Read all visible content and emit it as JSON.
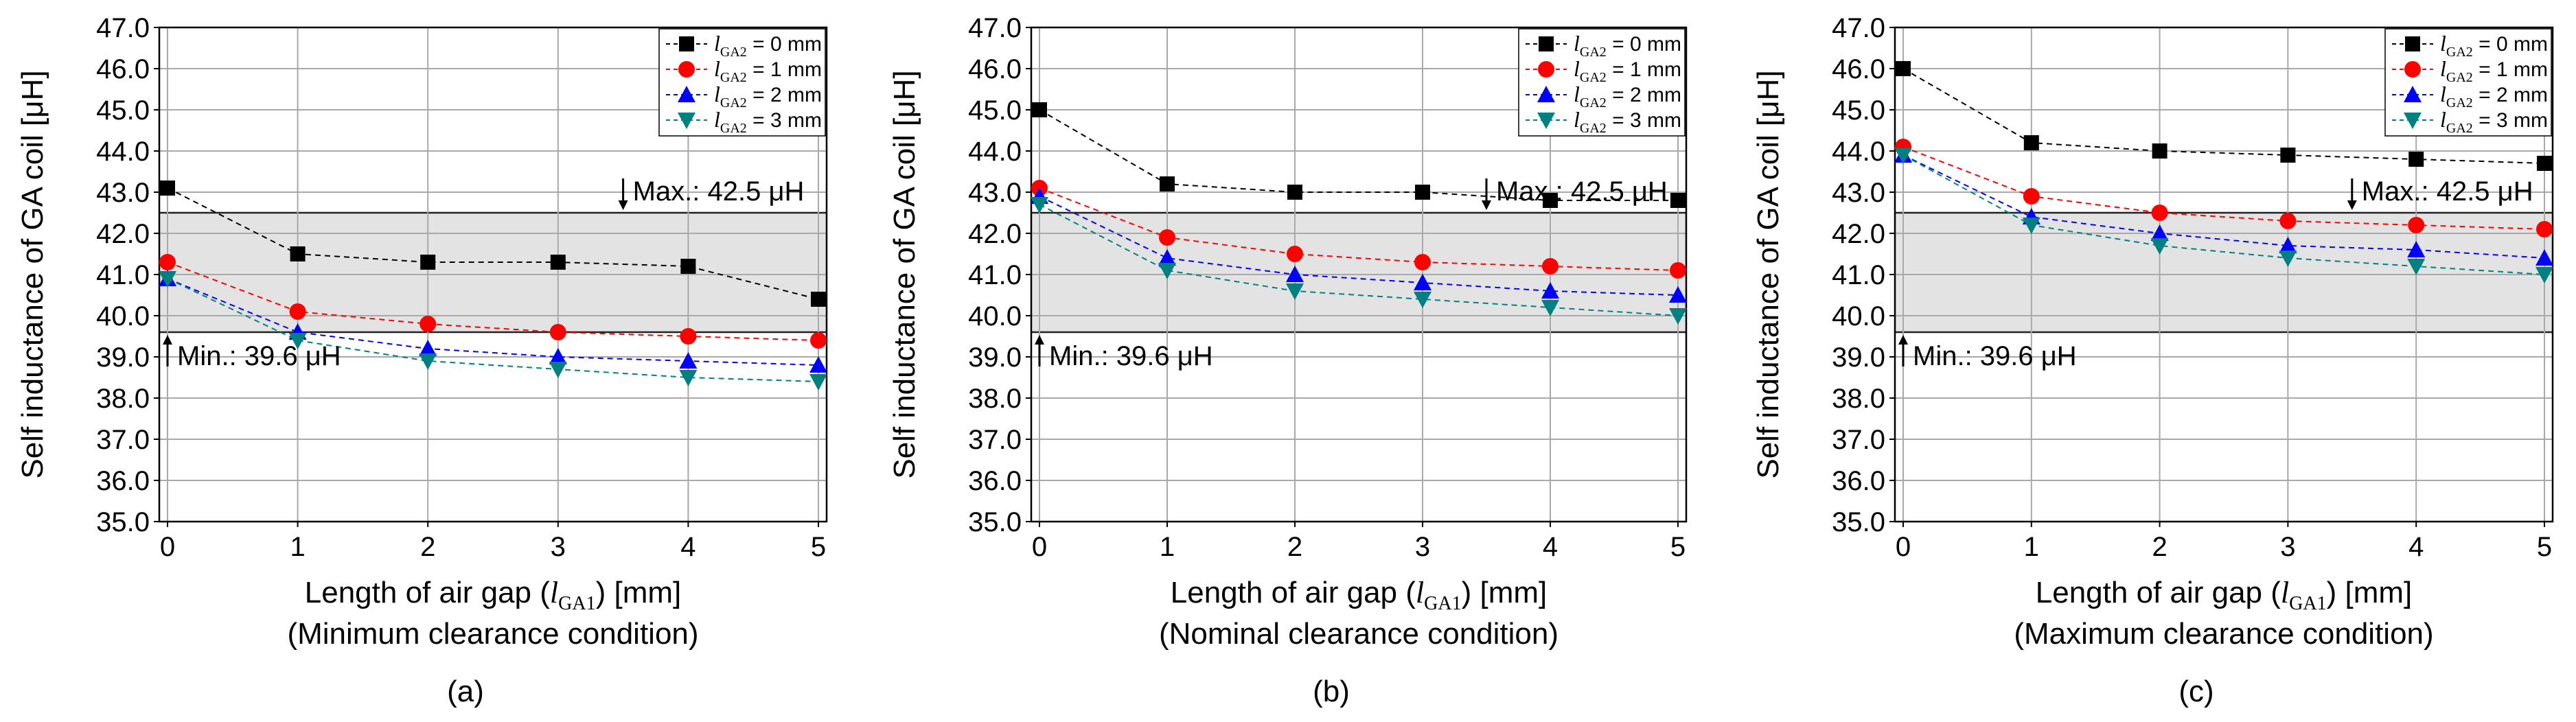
{
  "figure": {
    "legend_unit": "mm",
    "min_label": "Min.: 39.6 μH",
    "max_label": "Max.: 42.5 μH"
  },
  "chart_data": [
    {
      "type": "line",
      "panel_label": "(a)",
      "xlabel_main": "Length of air gap (l",
      "xlabel_sub": "GA1",
      "xlabel_unit": ") [mm]",
      "condition": "(Minimum clearance condition)",
      "ylabel": "Self inductance of GA coil [μH]",
      "ylim": [
        35.0,
        47.0
      ],
      "x": [
        0,
        1,
        2,
        3,
        4,
        5
      ],
      "xticks": [
        "0",
        "1",
        "2",
        "3",
        "4",
        "5"
      ],
      "yticks": [
        "35.0",
        "36.0",
        "37.0",
        "38.0",
        "39.0",
        "40.0",
        "41.0",
        "42.0",
        "43.0",
        "44.0",
        "45.0",
        "46.0",
        "47.0"
      ],
      "band": [
        39.6,
        42.5
      ],
      "series": [
        {
          "name": "l_GA2 = 0 mm",
          "color": "#000000",
          "marker": "square",
          "values": [
            43.1,
            41.5,
            41.3,
            41.3,
            41.2,
            40.4
          ]
        },
        {
          "name": "l_GA2 = 1 mm",
          "color": "#ff0000",
          "marker": "circle",
          "values": [
            41.3,
            40.1,
            39.8,
            39.6,
            39.5,
            39.4
          ]
        },
        {
          "name": "l_GA2 = 2 mm",
          "color": "#0000ff",
          "marker": "triangle",
          "values": [
            40.9,
            39.6,
            39.2,
            39.0,
            38.9,
            38.8
          ]
        },
        {
          "name": "l_GA2 = 3 mm",
          "color": "#008080",
          "marker": "triangle-down",
          "values": [
            40.9,
            39.4,
            38.9,
            38.7,
            38.5,
            38.4
          ]
        }
      ]
    },
    {
      "type": "line",
      "panel_label": "(b)",
      "xlabel_main": "Length of air gap (l",
      "xlabel_sub": "GA1",
      "xlabel_unit": ") [mm]",
      "condition": "(Nominal clearance condition)",
      "ylabel": "Self inductance of GA coil [μH]",
      "ylim": [
        35.0,
        47.0
      ],
      "x": [
        0,
        1,
        2,
        3,
        4,
        5
      ],
      "xticks": [
        "0",
        "1",
        "2",
        "3",
        "4",
        "5"
      ],
      "yticks": [
        "35.0",
        "36.0",
        "37.0",
        "38.0",
        "39.0",
        "40.0",
        "41.0",
        "42.0",
        "43.0",
        "44.0",
        "45.0",
        "46.0",
        "47.0"
      ],
      "band": [
        39.6,
        42.5
      ],
      "series": [
        {
          "name": "l_GA2 = 0 mm",
          "color": "#000000",
          "marker": "square",
          "values": [
            45.0,
            43.2,
            43.0,
            43.0,
            42.8,
            42.8
          ]
        },
        {
          "name": "l_GA2 = 1 mm",
          "color": "#ff0000",
          "marker": "circle",
          "values": [
            43.1,
            41.9,
            41.5,
            41.3,
            41.2,
            41.1
          ]
        },
        {
          "name": "l_GA2 = 2 mm",
          "color": "#0000ff",
          "marker": "triangle",
          "values": [
            42.9,
            41.4,
            41.0,
            40.8,
            40.6,
            40.5
          ]
        },
        {
          "name": "l_GA2 = 3 mm",
          "color": "#008080",
          "marker": "triangle-down",
          "values": [
            42.7,
            41.1,
            40.6,
            40.4,
            40.2,
            40.0
          ]
        }
      ]
    },
    {
      "type": "line",
      "panel_label": "(c)",
      "xlabel_main": "Length of air gap (l",
      "xlabel_sub": "GA1",
      "xlabel_unit": ") [mm]",
      "condition": "(Maximum clearance condition)",
      "ylabel": "Self inductance of GA coil [μH]",
      "ylim": [
        35.0,
        47.0
      ],
      "x": [
        0,
        1,
        2,
        3,
        4,
        5
      ],
      "xticks": [
        "0",
        "1",
        "2",
        "3",
        "4",
        "5"
      ],
      "yticks": [
        "35.0",
        "36.0",
        "37.0",
        "38.0",
        "39.0",
        "40.0",
        "41.0",
        "42.0",
        "43.0",
        "44.0",
        "45.0",
        "46.0",
        "47.0"
      ],
      "band": [
        39.6,
        42.5
      ],
      "series": [
        {
          "name": "l_GA2 = 0 mm",
          "color": "#000000",
          "marker": "square",
          "values": [
            46.0,
            44.2,
            44.0,
            43.9,
            43.8,
            43.7
          ]
        },
        {
          "name": "l_GA2 = 1 mm",
          "color": "#ff0000",
          "marker": "circle",
          "values": [
            44.1,
            42.9,
            42.5,
            42.3,
            42.2,
            42.1
          ]
        },
        {
          "name": "l_GA2 = 2 mm",
          "color": "#0000ff",
          "marker": "triangle",
          "values": [
            43.9,
            42.4,
            42.0,
            41.7,
            41.6,
            41.4
          ]
        },
        {
          "name": "l_GA2 = 3 mm",
          "color": "#008080",
          "marker": "triangle-down",
          "values": [
            43.9,
            42.2,
            41.7,
            41.4,
            41.2,
            41.0
          ]
        }
      ]
    }
  ]
}
